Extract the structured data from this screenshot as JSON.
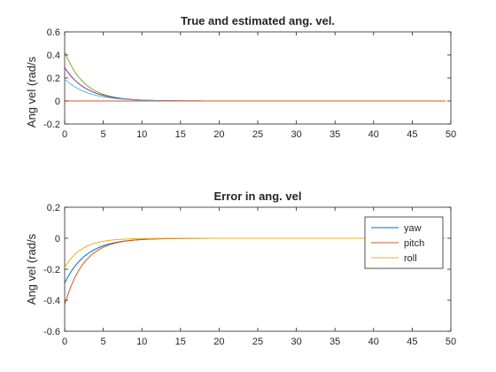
{
  "chart_data": [
    {
      "type": "line",
      "title": "True and estimated ang. vel.",
      "xlabel": "",
      "ylabel": "Ang vel (rad/s",
      "xlim": [
        0,
        50
      ],
      "ylim": [
        -0.2,
        0.6
      ],
      "xticks": [
        0,
        5,
        10,
        15,
        20,
        25,
        30,
        35,
        40,
        45,
        50
      ],
      "yticks": [
        -0.2,
        0,
        0.2,
        0.4,
        0.6
      ],
      "xtick_labels": [
        "0",
        "5",
        "10",
        "15",
        "20",
        "25",
        "30",
        "35",
        "40",
        "45",
        "50"
      ],
      "ytick_labels": [
        "-0.2",
        "0",
        "0.2",
        "0.4",
        "0.6"
      ],
      "x_end": 49.3,
      "grid": false,
      "legend": false,
      "series": [
        {
          "color": "#77AC30",
          "start": 0.43,
          "time_constant": 2.5
        },
        {
          "color": "#7E2F8E",
          "start": 0.29,
          "time_constant": 2.8
        },
        {
          "color": "#4DBEEE",
          "start": 0.19,
          "time_constant": 3.0
        },
        {
          "color": "#EDB120",
          "start": 0.0,
          "time_constant": 1.0
        },
        {
          "color": "#D95319",
          "start": 0.0,
          "time_constant": 1.0
        }
      ]
    },
    {
      "type": "line",
      "title": "Error in ang. vel",
      "xlabel": "",
      "ylabel": "Ang vel (rad/s",
      "xlim": [
        0,
        50
      ],
      "ylim": [
        -0.6,
        0.2
      ],
      "xticks": [
        0,
        5,
        10,
        15,
        20,
        25,
        30,
        35,
        40,
        45,
        50
      ],
      "yticks": [
        -0.6,
        -0.4,
        -0.2,
        0,
        0.2
      ],
      "xtick_labels": [
        "0",
        "5",
        "10",
        "15",
        "20",
        "25",
        "30",
        "35",
        "40",
        "45",
        "50"
      ],
      "ytick_labels": [
        "-0.6",
        "-0.4",
        "-0.2",
        "0",
        "0.2"
      ],
      "x_end": 49.3,
      "grid": false,
      "legend": true,
      "legend_position": "top-right",
      "series": [
        {
          "name": "yaw",
          "color": "#0072BD",
          "start": -0.29,
          "time_constant": 2.8
        },
        {
          "name": "pitch",
          "color": "#D95319",
          "start": -0.43,
          "time_constant": 2.5
        },
        {
          "name": "roll",
          "color": "#EDB120",
          "start": -0.19,
          "time_constant": 2.2
        }
      ]
    }
  ]
}
